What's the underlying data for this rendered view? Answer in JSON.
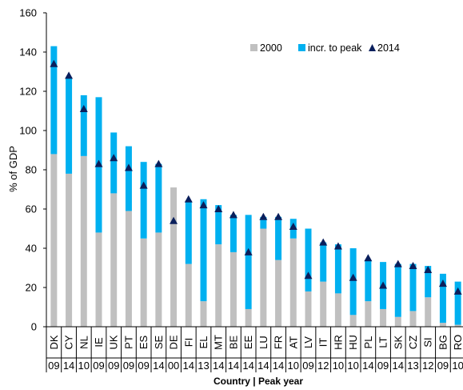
{
  "chart_data": {
    "type": "bar",
    "stacked": true,
    "title": "",
    "xlabel": "Country | Peak year",
    "ylabel": "% of GDP",
    "ylim": [
      0,
      160
    ],
    "yticks": [
      0,
      20,
      40,
      60,
      80,
      100,
      120,
      140,
      160
    ],
    "grid": false,
    "legend_position": "top-right",
    "categories": [
      "DK",
      "CY",
      "NL",
      "IE",
      "UK",
      "PT",
      "ES",
      "SE",
      "DE",
      "FI",
      "EL",
      "MT",
      "BE",
      "EE",
      "LU",
      "FR",
      "AT",
      "LV",
      "IT",
      "HR",
      "HU",
      "PL",
      "LT",
      "SK",
      "CZ",
      "SI",
      "BG",
      "RO"
    ],
    "peak_years": [
      "09",
      "14",
      "10",
      "09",
      "09",
      "09",
      "09",
      "14",
      "00",
      "14",
      "13",
      "14",
      "14",
      "14",
      "14",
      "14",
      "10",
      "09",
      "12",
      "10",
      "10",
      "14",
      "09",
      "14",
      "13",
      "12",
      "09",
      "10"
    ],
    "series": [
      {
        "name": "2000",
        "type": "bar",
        "color": "#c0c0c0",
        "values": [
          88,
          78,
          87,
          48,
          68,
          59,
          45,
          48,
          71,
          32,
          13,
          42,
          38,
          9,
          50,
          34,
          45,
          18,
          23,
          17,
          6,
          13,
          9,
          5,
          8,
          15,
          2,
          1
        ]
      },
      {
        "name": "incr. to peak",
        "type": "bar",
        "color": "#00b0f0",
        "values": [
          55,
          49,
          31,
          69,
          31,
          33,
          39,
          35,
          0,
          32,
          52,
          20,
          19,
          48,
          6,
          22,
          10,
          32,
          20,
          25,
          34,
          21,
          24,
          27,
          24,
          16,
          25,
          22
        ]
      },
      {
        "name": "2014",
        "type": "marker",
        "marker": "triangle",
        "color": "#0a1f5c",
        "values": [
          134,
          128,
          111,
          83,
          86,
          81,
          72,
          83,
          54,
          65,
          62,
          60,
          57,
          38,
          56,
          56,
          51,
          26,
          43,
          41,
          25,
          35,
          21,
          32,
          31,
          29,
          22,
          18
        ]
      }
    ]
  }
}
